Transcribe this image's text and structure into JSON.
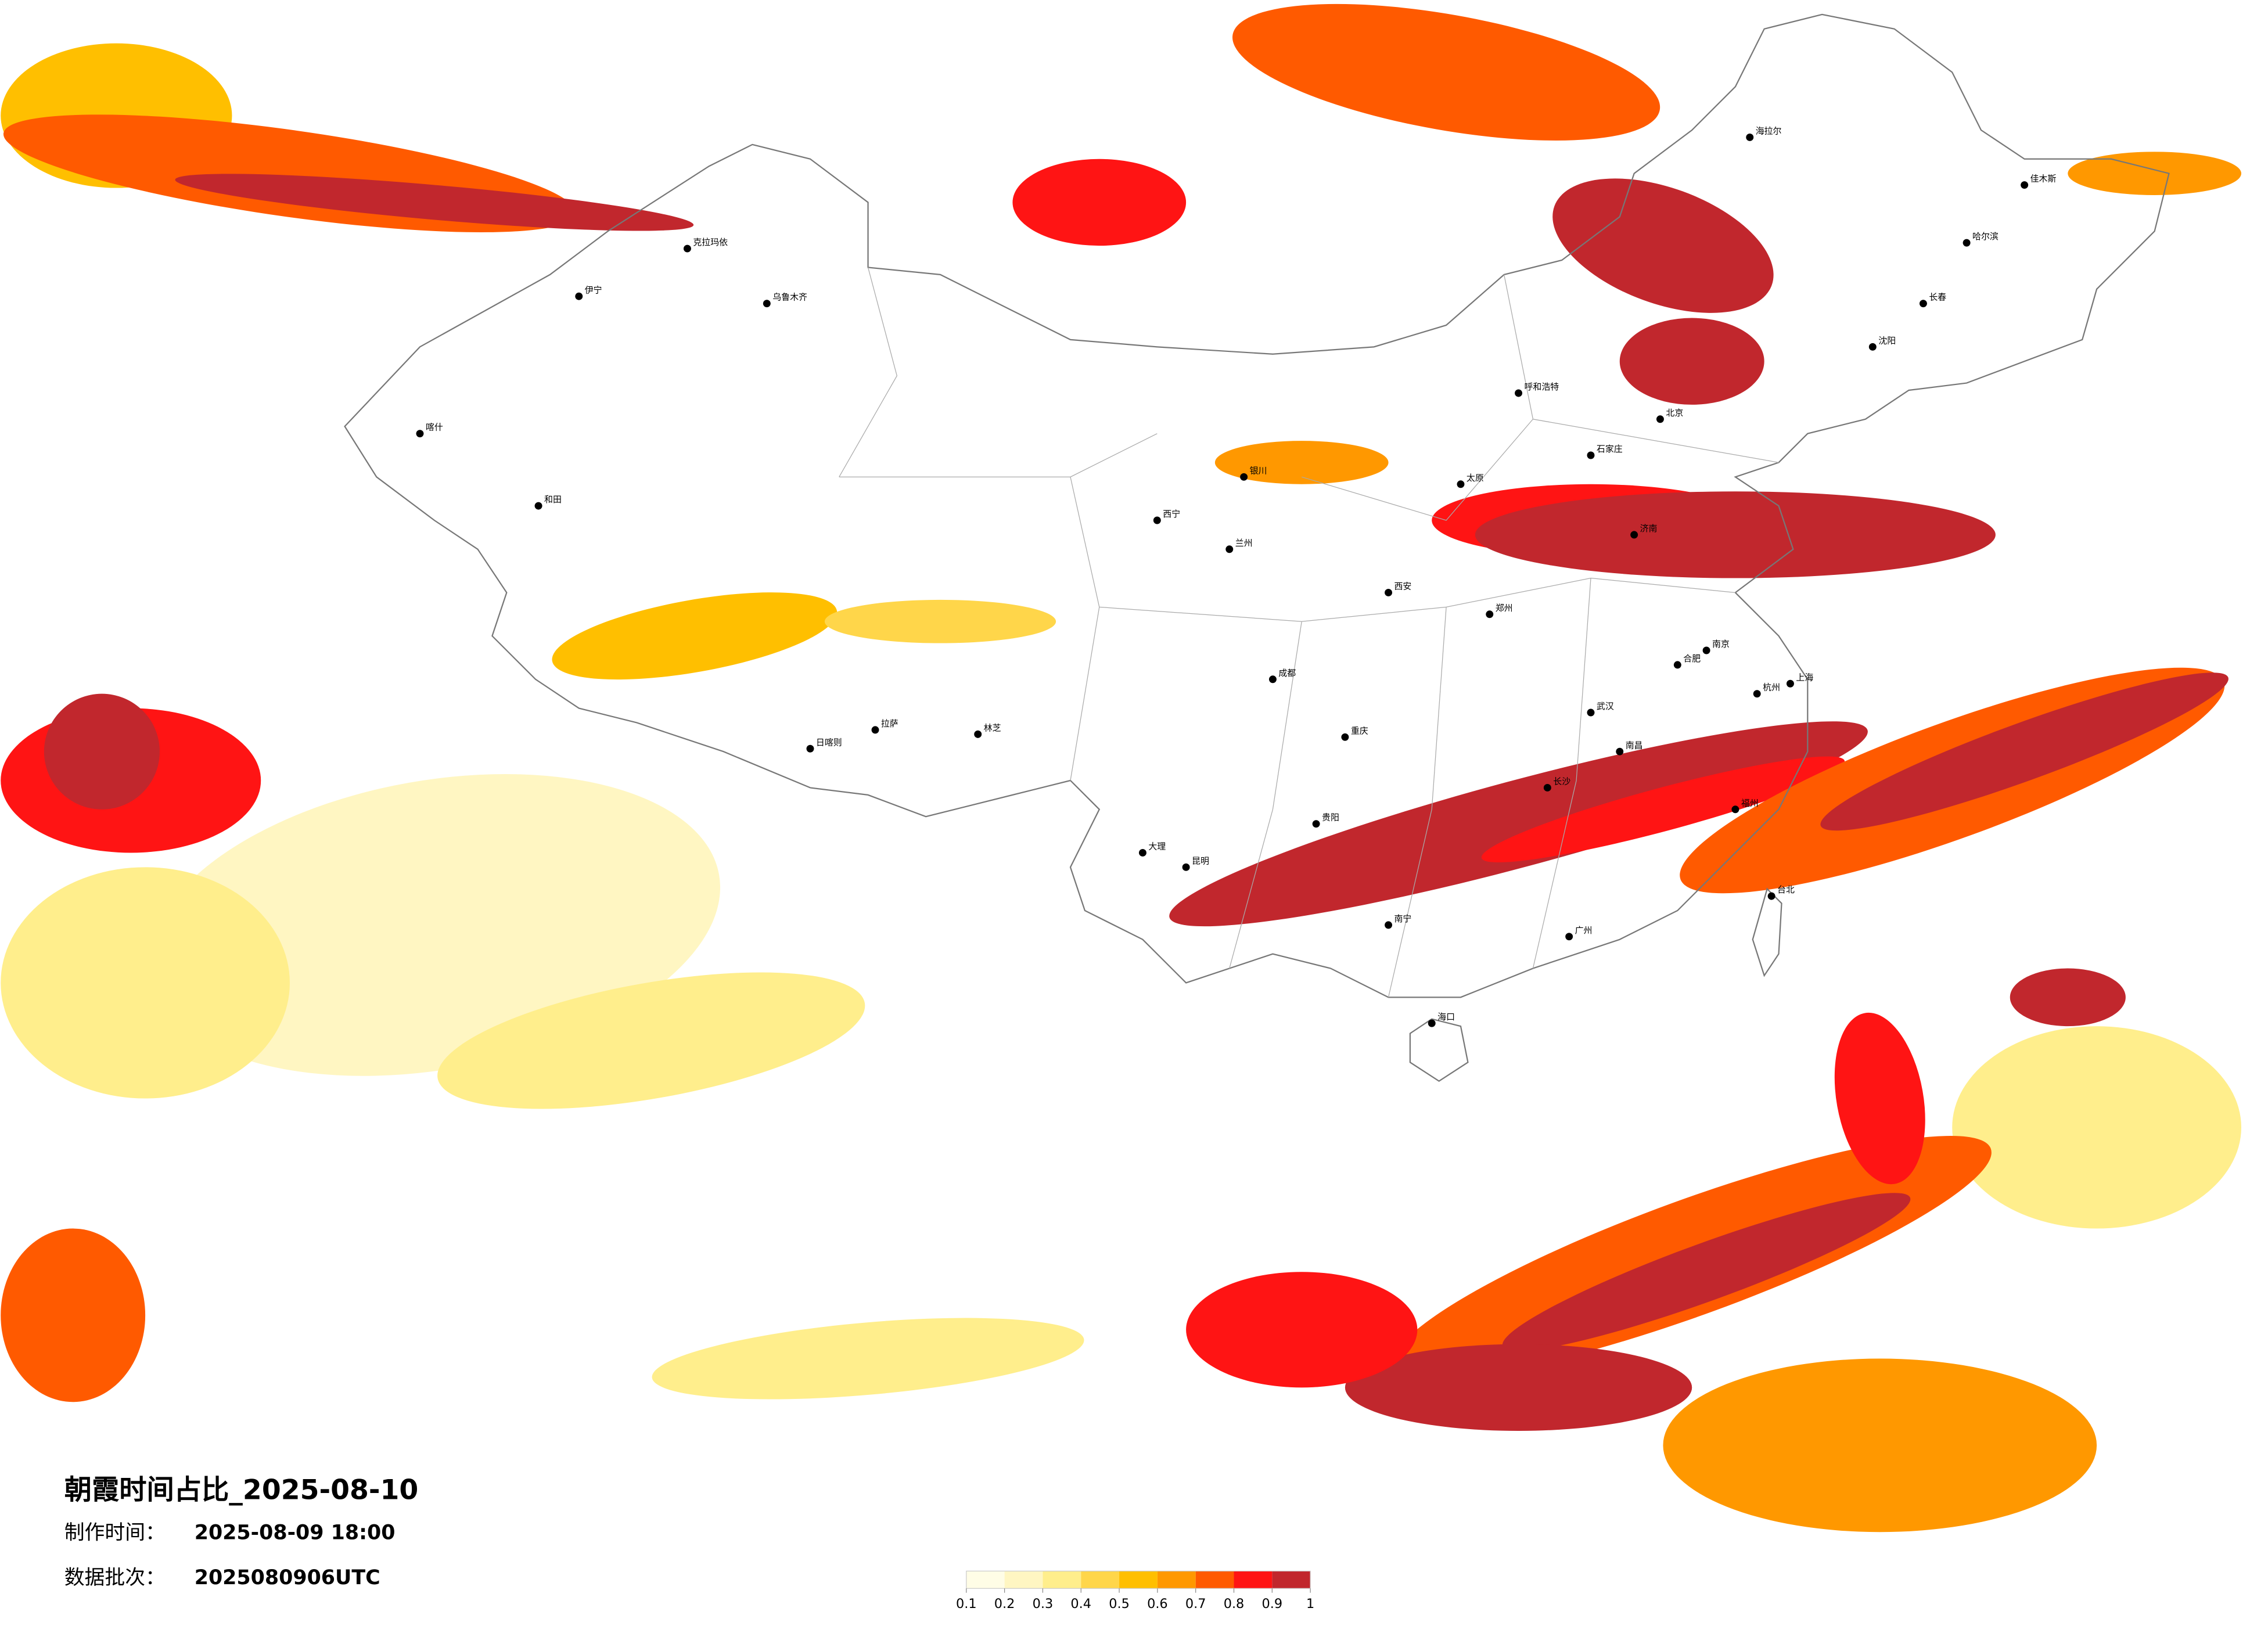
{
  "header": {
    "title": "朝霞时间占比_2025-08-10"
  },
  "meta": [
    {
      "label": "制作时间：",
      "value": "2025-08-09 18:00"
    },
    {
      "label": "数据批次：",
      "value": "2025080906UTC"
    }
  ],
  "legend": {
    "colors": [
      "#fffde6",
      "#fff6c2",
      "#ffee8c",
      "#ffd64a",
      "#ffbf00",
      "#ff9800",
      "#ff5a00",
      "#ff1414",
      "#c1272d"
    ],
    "ticks": [
      0.1,
      0.2,
      0.3,
      0.4,
      0.5,
      0.6,
      0.7,
      0.8,
      0.9,
      1
    ]
  },
  "cities": [
    "北京",
    "上海",
    "广州",
    "武汉",
    "成都",
    "重庆",
    "西安",
    "兰州",
    "乌鲁木齐",
    "拉萨",
    "哈尔滨",
    "长春",
    "沈阳",
    "呼和浩特",
    "郑州",
    "济南",
    "南京",
    "杭州",
    "福州",
    "长沙",
    "南昌",
    "贵阳",
    "昆明",
    "南宁",
    "海口",
    "西宁",
    "银川",
    "太原",
    "石家庄",
    "合肥",
    "台北",
    "和田",
    "喀什",
    "日喀则",
    "林芝",
    "大理",
    "伊宁",
    "克拉玛依",
    "海拉尔",
    "佳木斯"
  ]
}
